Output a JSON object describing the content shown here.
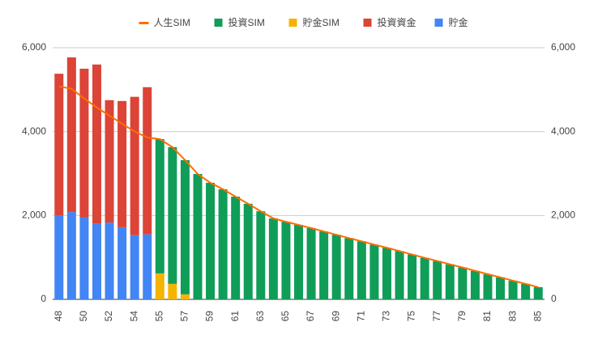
{
  "chart_data": {
    "type": "bar",
    "categories": [
      48,
      null,
      50,
      null,
      52,
      null,
      54,
      null,
      55,
      null,
      57,
      null,
      59,
      null,
      61,
      null,
      63,
      null,
      65,
      null,
      67,
      null,
      69,
      null,
      71,
      null,
      73,
      null,
      75,
      null,
      77,
      null,
      79,
      null,
      81,
      null,
      83,
      null,
      85
    ],
    "stacked": true,
    "series": [
      {
        "name": "人生SIM",
        "type": "line",
        "color": "#ff6d00",
        "values": [
          5080,
          5020,
          4790,
          4575,
          4380,
          4190,
          4000,
          3860,
          3820,
          3630,
          3320,
          2990,
          2780,
          2625,
          2450,
          2280,
          2100,
          1930,
          1850,
          1775,
          1700,
          1620,
          1540,
          1460,
          1385,
          1305,
          1230,
          1150,
          1070,
          990,
          915,
          835,
          760,
          680,
          600,
          525,
          445,
          370,
          290
        ]
      },
      {
        "name": "投資SIM",
        "color": "#0f9d58",
        "values": [
          null,
          null,
          null,
          null,
          null,
          null,
          null,
          null,
          3200,
          3260,
          3200,
          2990,
          2780,
          2625,
          2450,
          2280,
          2100,
          1930,
          1850,
          1775,
          1700,
          1620,
          1540,
          1460,
          1385,
          1305,
          1230,
          1150,
          1070,
          990,
          915,
          835,
          760,
          680,
          600,
          525,
          445,
          370,
          290
        ]
      },
      {
        "name": "貯金SIM",
        "color": "#f4b400",
        "values": [
          null,
          null,
          null,
          null,
          null,
          null,
          null,
          null,
          620,
          370,
          120,
          null,
          null,
          null,
          null,
          null,
          null,
          null,
          null,
          null,
          null,
          null,
          null,
          null,
          null,
          null,
          null,
          null,
          null,
          null,
          null,
          null,
          null,
          null,
          null,
          null,
          null,
          null,
          null
        ]
      },
      {
        "name": "投資資金",
        "color": "#db4437",
        "values": [
          3380,
          3690,
          3550,
          3800,
          2920,
          3010,
          3300,
          3510,
          null,
          null,
          null,
          null,
          null,
          null,
          null,
          null,
          null,
          null,
          null,
          null,
          null,
          null,
          null,
          null,
          null,
          null,
          null,
          null,
          null,
          null,
          null,
          null,
          null,
          null,
          null,
          null,
          null,
          null,
          null
        ]
      },
      {
        "name": "貯金",
        "color": "#4285f4",
        "values": [
          2000,
          2080,
          1950,
          1800,
          1830,
          1720,
          1530,
          1550,
          null,
          null,
          null,
          null,
          null,
          null,
          null,
          null,
          null,
          null,
          null,
          null,
          null,
          null,
          null,
          null,
          null,
          null,
          null,
          null,
          null,
          null,
          null,
          null,
          null,
          null,
          null,
          null,
          null,
          null,
          null
        ]
      }
    ],
    "ylim": [
      0,
      6000
    ],
    "yticks": [
      0,
      {
        "value": 2000,
        "label": "2,000"
      },
      {
        "value": 4000,
        "label": "4,000"
      },
      {
        "value": 6000,
        "label": "6,000"
      }
    ],
    "y2lim": [
      0,
      6000
    ],
    "y2ticks": [
      0,
      {
        "value": 2000,
        "label": "2,000"
      },
      {
        "value": 4000,
        "label": "4,000"
      },
      {
        "value": 6000,
        "label": "6,000"
      }
    ],
    "grid": true,
    "legend": "top"
  }
}
